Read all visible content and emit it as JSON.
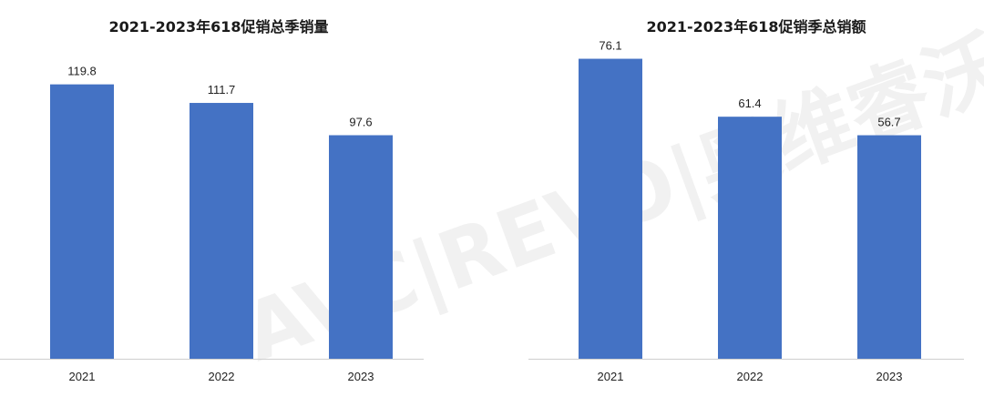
{
  "chart_data": [
    {
      "type": "bar",
      "title": "2021-2023年618促销总季销量",
      "categories": [
        "2021",
        "2022",
        "2023"
      ],
      "values": [
        119.8,
        111.7,
        97.6
      ],
      "value_labels": [
        "119.8",
        "111.7",
        "97.6"
      ],
      "ylim": [
        0,
        130
      ],
      "grid": false,
      "color": "#4472C4"
    },
    {
      "type": "bar",
      "title": "2021-2023年618促销季总销额",
      "categories": [
        "2021",
        "2022",
        "2023"
      ],
      "values": [
        76.1,
        61.4,
        56.7
      ],
      "value_labels": [
        "76.1",
        "61.4",
        "56.7"
      ],
      "ylim": [
        0,
        82
      ],
      "grid": false,
      "color": "#4472C4"
    }
  ],
  "watermark": "AVC|REVO|奥维睿沃"
}
